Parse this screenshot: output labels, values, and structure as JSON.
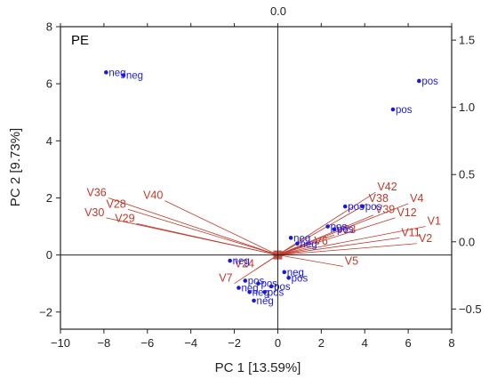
{
  "chart_data": {
    "type": "scatter",
    "subtype": "biplot",
    "panel_label": "PE",
    "xlabel": "PC 1 [13.59%]",
    "ylabel": "PC 2 [9.73%]",
    "top_axis_label": "0.0",
    "xlim": [
      -10,
      8
    ],
    "ylim": [
      -2.6,
      8
    ],
    "x_ticks": [
      -10,
      -8,
      -6,
      -4,
      -2,
      0,
      2,
      4,
      6,
      8
    ],
    "y_ticks": [
      -2,
      0,
      2,
      4,
      6,
      8
    ],
    "right_axis": {
      "ylim": [
        -0.65,
        1.6
      ],
      "ticks": [
        -0.5,
        0.0,
        0.5,
        1.0,
        1.5
      ],
      "tick_labels": [
        "-0.5",
        "0.0",
        "0.5",
        "1.0",
        "1.5"
      ]
    },
    "grid": false,
    "zero_lines": true,
    "colors": {
      "scores": "#1a1ad4",
      "loadings": "#c0392b",
      "frame": "#222222"
    },
    "scores": [
      {
        "x": -7.9,
        "y": 6.4,
        "label": "neg"
      },
      {
        "x": -7.1,
        "y": 6.3,
        "label": "neg"
      },
      {
        "x": 6.5,
        "y": 6.1,
        "label": "pos"
      },
      {
        "x": 5.3,
        "y": 5.1,
        "label": "pos"
      },
      {
        "x": 3.1,
        "y": 1.7,
        "label": "pos"
      },
      {
        "x": 3.9,
        "y": 1.7,
        "label": "pos"
      },
      {
        "x": 2.3,
        "y": 1.0,
        "label": "pos"
      },
      {
        "x": 2.6,
        "y": 0.9,
        "label": "pos"
      },
      {
        "x": 0.6,
        "y": 0.6,
        "label": "neg"
      },
      {
        "x": 0.9,
        "y": 0.4,
        "label": "neg"
      },
      {
        "x": -2.2,
        "y": -0.2,
        "label": "neg"
      },
      {
        "x": 0.3,
        "y": -0.6,
        "label": "neg"
      },
      {
        "x": -1.5,
        "y": -0.9,
        "label": "pos"
      },
      {
        "x": -0.9,
        "y": -1.0,
        "label": "pos"
      },
      {
        "x": -0.3,
        "y": -1.1,
        "label": "pos"
      },
      {
        "x": 0.5,
        "y": -0.8,
        "label": "pos"
      },
      {
        "x": -1.8,
        "y": -1.15,
        "label": "neg"
      },
      {
        "x": -1.3,
        "y": -1.3,
        "label": "neg"
      },
      {
        "x": -0.6,
        "y": -1.3,
        "label": "pos"
      },
      {
        "x": -1.1,
        "y": -1.6,
        "label": "neg"
      }
    ],
    "loadings": [
      {
        "name": "V36",
        "x": -7.8,
        "y": 2.0
      },
      {
        "name": "V40",
        "x": -5.2,
        "y": 1.9
      },
      {
        "name": "V28",
        "x": -6.9,
        "y": 1.6
      },
      {
        "name": "V30",
        "x": -7.9,
        "y": 1.3
      },
      {
        "name": "V29",
        "x": -6.5,
        "y": 1.1
      },
      {
        "name": "V42",
        "x": 4.5,
        "y": 2.2
      },
      {
        "name": "V38",
        "x": 4.1,
        "y": 1.8
      },
      {
        "name": "V4",
        "x": 6.0,
        "y": 1.8
      },
      {
        "name": "V39",
        "x": 4.4,
        "y": 1.4
      },
      {
        "name": "V12",
        "x": 5.4,
        "y": 1.3
      },
      {
        "name": "V1",
        "x": 6.8,
        "y": 1.0
      },
      {
        "name": "V11",
        "x": 5.6,
        "y": 0.6
      },
      {
        "name": "V2",
        "x": 6.4,
        "y": 0.4
      },
      {
        "name": "V23",
        "x": 2.6,
        "y": 0.7
      },
      {
        "name": "V6",
        "x": 1.6,
        "y": 0.3
      },
      {
        "name": "V5",
        "x": 3.0,
        "y": -0.4
      },
      {
        "name": "V24",
        "x": -1.0,
        "y": -0.5
      },
      {
        "name": "V7",
        "x": -2.0,
        "y": -1.0
      }
    ]
  }
}
